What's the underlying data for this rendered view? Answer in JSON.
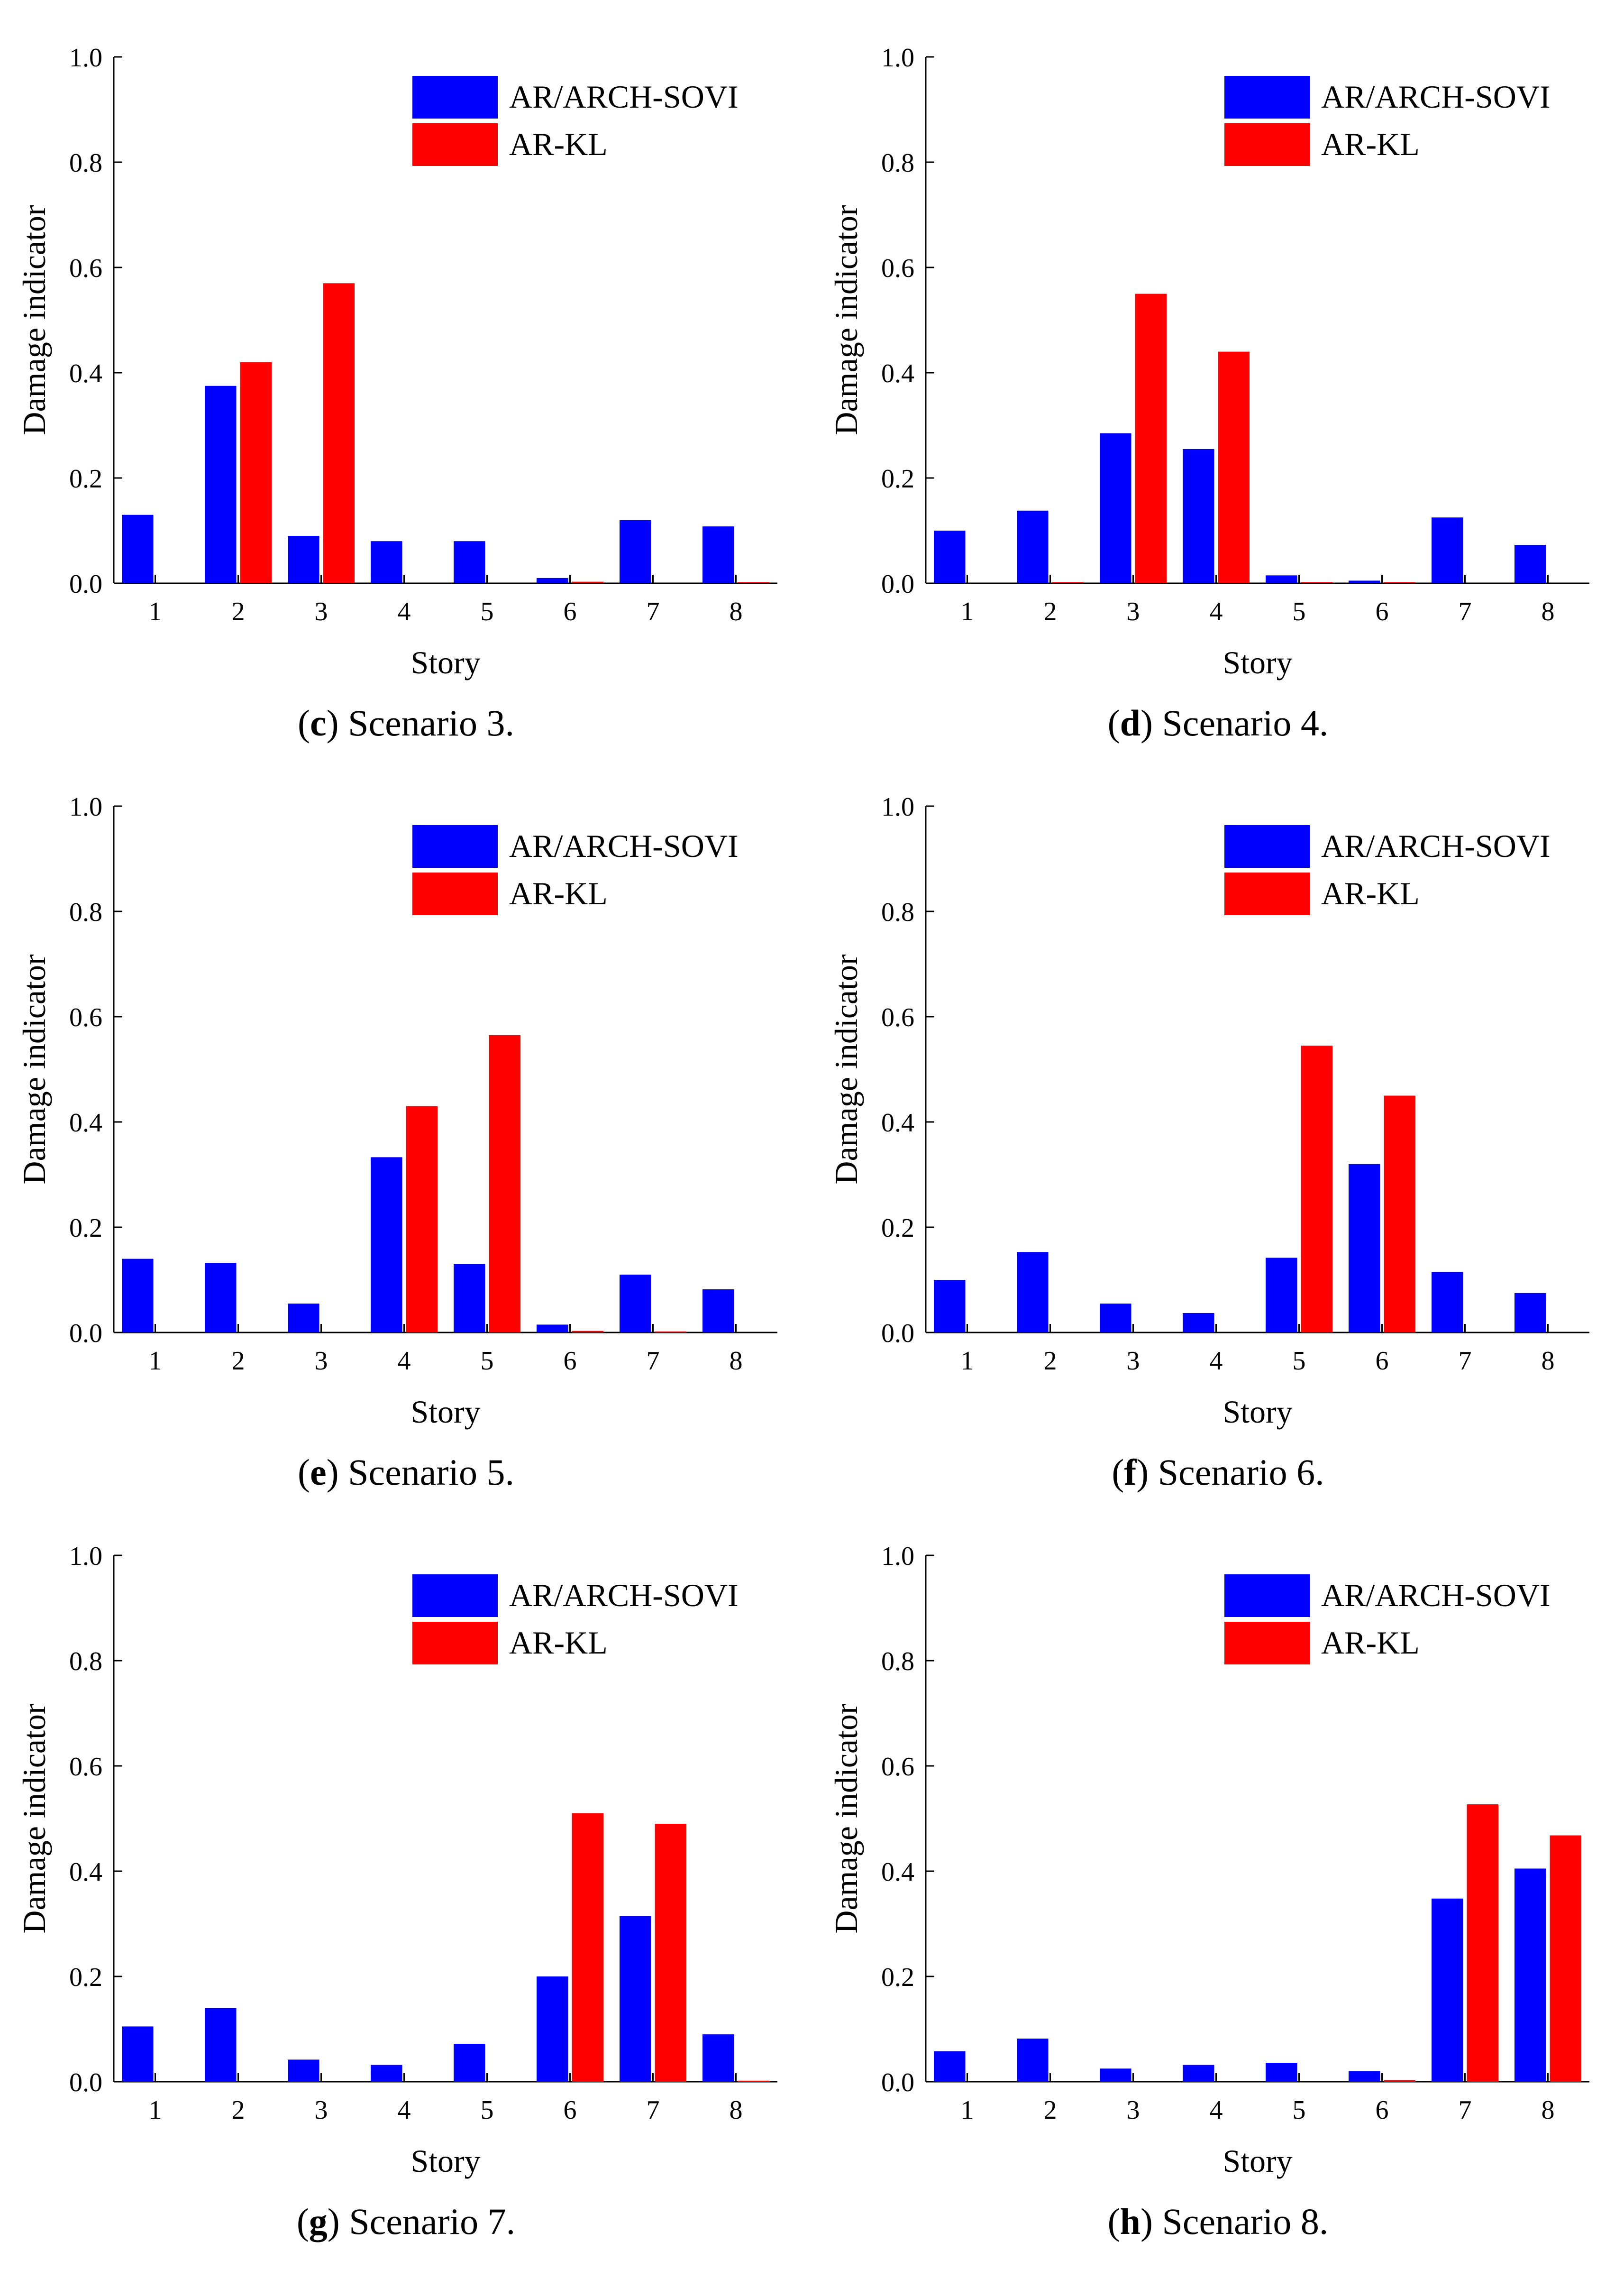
{
  "colors": {
    "ar_arch_sovi": "#0000FF",
    "ar_kl": "#FF0000",
    "axis": "#000000"
  },
  "chart_data": [
    {
      "type": "bar",
      "caption_letter": "c",
      "caption_text": " Scenario 3.",
      "categories": [
        "1",
        "2",
        "3",
        "4",
        "5",
        "6",
        "7",
        "8"
      ],
      "series": [
        {
          "name": "AR/ARCH-SOVI",
          "values": [
            0.13,
            0.375,
            0.09,
            0.08,
            0.08,
            0.01,
            0.12,
            0.108
          ]
        },
        {
          "name": "AR-KL",
          "values": [
            0,
            0.42,
            0.57,
            0,
            0,
            0.003,
            0,
            0.002
          ]
        }
      ],
      "xlabel": "Story",
      "ylabel": "Damage indicator",
      "ylim": [
        0,
        1.0
      ],
      "yticks": [
        "0.0",
        "0.2",
        "0.4",
        "0.6",
        "0.8",
        "1.0"
      ],
      "legend": "top-right",
      "grid": false
    },
    {
      "type": "bar",
      "caption_letter": "d",
      "caption_text": " Scenario 4.",
      "categories": [
        "1",
        "2",
        "3",
        "4",
        "5",
        "6",
        "7",
        "8"
      ],
      "series": [
        {
          "name": "AR/ARCH-SOVI",
          "values": [
            0.1,
            0.138,
            0.285,
            0.255,
            0.015,
            0.005,
            0.125,
            0.073
          ]
        },
        {
          "name": "AR-KL",
          "values": [
            0,
            0.002,
            0.55,
            0.44,
            0.002,
            0.002,
            0,
            0
          ]
        }
      ],
      "xlabel": "Story",
      "ylabel": "Damage indicator",
      "ylim": [
        0,
        1.0
      ],
      "yticks": [
        "0.0",
        "0.2",
        "0.4",
        "0.6",
        "0.8",
        "1.0"
      ],
      "legend": "top-right",
      "grid": false
    },
    {
      "type": "bar",
      "caption_letter": "e",
      "caption_text": " Scenario 5.",
      "categories": [
        "1",
        "2",
        "3",
        "4",
        "5",
        "6",
        "7",
        "8"
      ],
      "series": [
        {
          "name": "AR/ARCH-SOVI",
          "values": [
            0.14,
            0.132,
            0.055,
            0.333,
            0.13,
            0.015,
            0.11,
            0.082
          ]
        },
        {
          "name": "AR-KL",
          "values": [
            0,
            0,
            0,
            0.43,
            0.565,
            0.003,
            0.002,
            0
          ]
        }
      ],
      "xlabel": "Story",
      "ylabel": "Damage indicator",
      "ylim": [
        0,
        1.0
      ],
      "yticks": [
        "0.0",
        "0.2",
        "0.4",
        "0.6",
        "0.8",
        "1.0"
      ],
      "legend": "top-right",
      "grid": false
    },
    {
      "type": "bar",
      "caption_letter": "f",
      "caption_text": " Scenario 6.",
      "categories": [
        "1",
        "2",
        "3",
        "4",
        "5",
        "6",
        "7",
        "8"
      ],
      "series": [
        {
          "name": "AR/ARCH-SOVI",
          "values": [
            0.1,
            0.153,
            0.055,
            0.037,
            0.142,
            0.32,
            0.115,
            0.075
          ]
        },
        {
          "name": "AR-KL",
          "values": [
            0,
            0,
            0,
            0,
            0.545,
            0.45,
            0,
            0
          ]
        }
      ],
      "xlabel": "Story",
      "ylabel": "Damage indicator",
      "ylim": [
        0,
        1.0
      ],
      "yticks": [
        "0.0",
        "0.2",
        "0.4",
        "0.6",
        "0.8",
        "1.0"
      ],
      "legend": "top-right",
      "grid": false
    },
    {
      "type": "bar",
      "caption_letter": "g",
      "caption_text": " Scenario 7.",
      "categories": [
        "1",
        "2",
        "3",
        "4",
        "5",
        "6",
        "7",
        "8"
      ],
      "series": [
        {
          "name": "AR/ARCH-SOVI",
          "values": [
            0.105,
            0.14,
            0.042,
            0.032,
            0.072,
            0.2,
            0.315,
            0.09
          ]
        },
        {
          "name": "AR-KL",
          "values": [
            0,
            0,
            0,
            0,
            0,
            0.51,
            0.49,
            0.002
          ]
        }
      ],
      "xlabel": "Story",
      "ylabel": "Damage indicator",
      "ylim": [
        0,
        1.0
      ],
      "yticks": [
        "0.0",
        "0.2",
        "0.4",
        "0.6",
        "0.8",
        "1.0"
      ],
      "legend": "top-right",
      "grid": false
    },
    {
      "type": "bar",
      "caption_letter": "h",
      "caption_text": " Scenario 8.",
      "categories": [
        "1",
        "2",
        "3",
        "4",
        "5",
        "6",
        "7",
        "8"
      ],
      "series": [
        {
          "name": "AR/ARCH-SOVI",
          "values": [
            0.058,
            0.082,
            0.025,
            0.032,
            0.036,
            0.02,
            0.348,
            0.405
          ]
        },
        {
          "name": "AR-KL",
          "values": [
            0,
            0,
            0,
            0,
            0,
            0.003,
            0.527,
            0.468
          ]
        }
      ],
      "xlabel": "Story",
      "ylabel": "Damage indicator",
      "ylim": [
        0,
        1.0
      ],
      "yticks": [
        "0.0",
        "0.2",
        "0.4",
        "0.6",
        "0.8",
        "1.0"
      ],
      "legend": "top-right",
      "grid": false
    }
  ]
}
